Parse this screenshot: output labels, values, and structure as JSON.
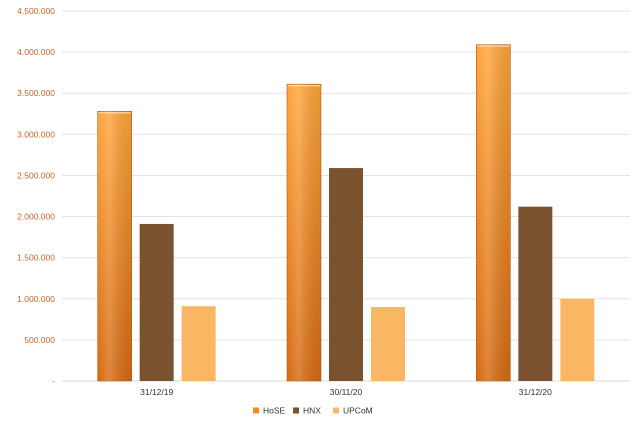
{
  "chart_data": {
    "type": "bar",
    "categories": [
      "31/12/19",
      "30/11/20",
      "31/12/20"
    ],
    "series": [
      {
        "name": "HoSE",
        "values": [
          3280000,
          3610000,
          4090000
        ],
        "color": "#f28c1e"
      },
      {
        "name": "HNX",
        "values": [
          1910000,
          2590000,
          2120000
        ],
        "color": "#7a5230"
      },
      {
        "name": "UPCoM",
        "values": [
          910000,
          900000,
          1000000
        ],
        "color": "#f9b763"
      }
    ],
    "yticks": [
      "-",
      "500.000",
      "1.000.000",
      "1.500.000",
      "2.000.000",
      "2.500.000",
      "3.000.000",
      "3.500.000",
      "4.000.000",
      "4.500.000"
    ],
    "ylim": [
      0,
      4500000
    ],
    "grid": true,
    "legend_position": "bottom"
  }
}
